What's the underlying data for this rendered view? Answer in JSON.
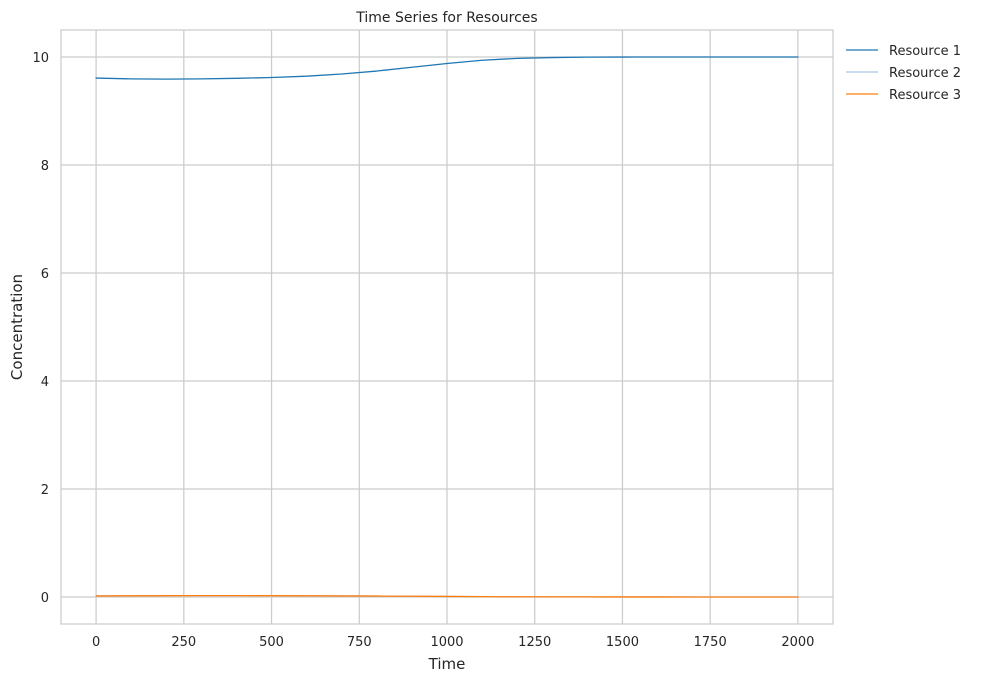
{
  "chart_data": {
    "type": "line",
    "title": "Time Series for Resources",
    "xlabel": "Time",
    "ylabel": "Concentration",
    "xlim": [
      -100,
      2100
    ],
    "ylim": [
      -0.5,
      10.5
    ],
    "xticks": [
      0,
      250,
      500,
      750,
      1000,
      1250,
      1500,
      1750,
      2000
    ],
    "xtick_labels": [
      "0",
      "250",
      "500",
      "750",
      "1000",
      "1250",
      "1500",
      "1750",
      "2000"
    ],
    "yticks": [
      0,
      2,
      4,
      6,
      8,
      10
    ],
    "ytick_labels": [
      "0",
      "2",
      "4",
      "6",
      "8",
      "10"
    ],
    "grid": true,
    "legend_position": "outside-top-right",
    "x": [
      0,
      100,
      200,
      300,
      400,
      500,
      600,
      700,
      800,
      900,
      1000,
      1100,
      1200,
      1300,
      1400,
      1500,
      1600,
      1700,
      1800,
      1900,
      2000
    ],
    "series": [
      {
        "name": "Resource 1",
        "color": "#1f77b4",
        "values": [
          9.61,
          9.595,
          9.59,
          9.595,
          9.605,
          9.62,
          9.645,
          9.685,
          9.74,
          9.81,
          9.88,
          9.94,
          9.975,
          9.99,
          9.997,
          9.999,
          10.0,
          10.0,
          10.0,
          10.0,
          10.0
        ]
      },
      {
        "name": "Resource 2",
        "color": "#aec7e8",
        "values": [
          0.02,
          0.022,
          0.024,
          0.025,
          0.025,
          0.024,
          0.022,
          0.02,
          0.017,
          0.014,
          0.01,
          0.007,
          0.004,
          0.003,
          0.002,
          0.001,
          0.001,
          0.0,
          0.0,
          0.0,
          0.0
        ]
      },
      {
        "name": "Resource 3",
        "color": "#ff7f0e",
        "values": [
          0.02,
          0.022,
          0.024,
          0.025,
          0.025,
          0.024,
          0.022,
          0.02,
          0.017,
          0.014,
          0.01,
          0.007,
          0.004,
          0.003,
          0.002,
          0.001,
          0.001,
          0.0,
          0.0,
          0.0,
          0.0
        ]
      }
    ]
  },
  "colors": {
    "grid": "#cccccc",
    "axes_edge": "#cccccc",
    "text": "#262626",
    "background": "#ffffff"
  }
}
